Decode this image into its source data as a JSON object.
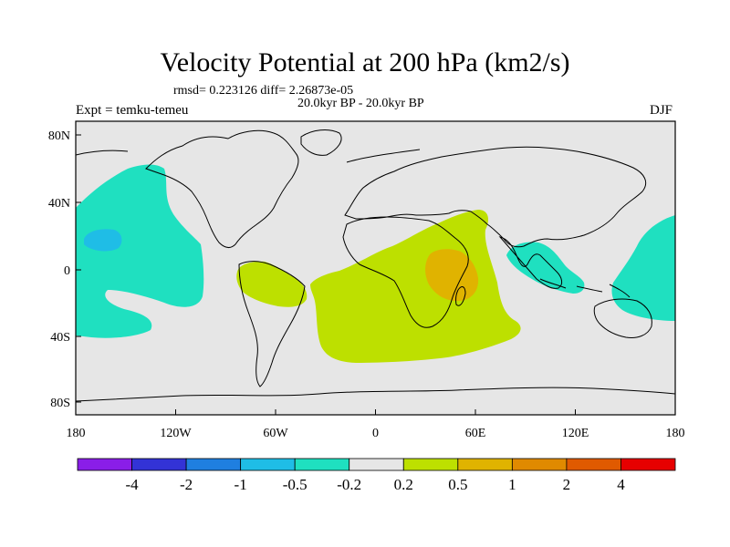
{
  "title": "Velocity Potential at 200 hPa (km2/s)",
  "stats": "rmsd= 0.223126 diff= 2.26873e-05",
  "period": "20.0kyr BP - 20.0kyr BP",
  "experiment": "Expt = temku-temeu",
  "season": "DJF",
  "x_ticks": [
    "180",
    "120W",
    "60W",
    "0",
    "60E",
    "120E",
    "180"
  ],
  "y_ticks": [
    "80N",
    "40N",
    "0",
    "40S",
    "80S"
  ],
  "colorbar": {
    "colors": [
      "#8a1ee8",
      "#3333d6",
      "#1f7fe0",
      "#1fbde6",
      "#1fe0c0",
      "#e6e6e6",
      "#bde000",
      "#e0b300",
      "#e08a00",
      "#e05a00",
      "#e60000"
    ],
    "labels": [
      "-4",
      "-2",
      "-1",
      "-0.5",
      "-0.2",
      "0.2",
      "0.5",
      "1",
      "2",
      "4"
    ]
  },
  "colors": {
    "background": "#e6e6e6",
    "neg_weak": "#1fe0c0",
    "neg_mid": "#1fbde6",
    "pos_weak": "#bde000",
    "pos_mid": "#e0b300",
    "coast": "#000000"
  }
}
